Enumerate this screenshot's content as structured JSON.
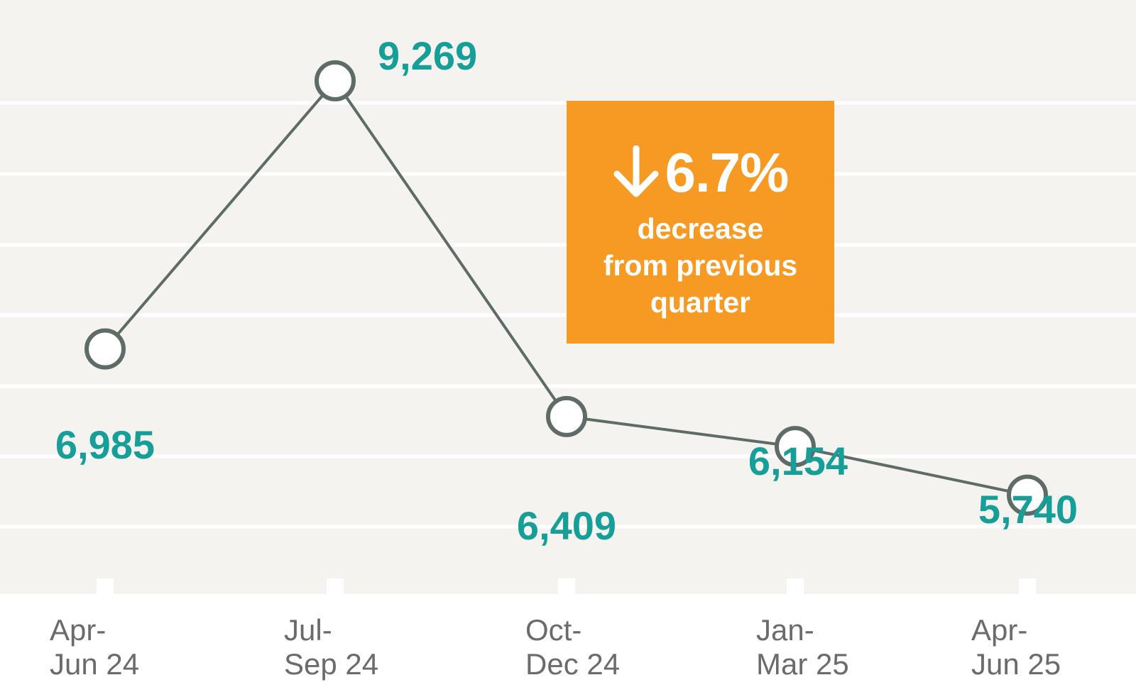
{
  "chart_data": {
    "type": "line",
    "categories": [
      [
        "Apr-",
        "Jun 24"
      ],
      [
        "Jul-",
        "Sep 24"
      ],
      [
        "Oct-",
        "Dec 24"
      ],
      [
        "Jan-",
        "Mar 25"
      ],
      [
        "Apr-",
        "Jun 25"
      ]
    ],
    "values": [
      6985,
      9269,
      6409,
      6154,
      5740
    ],
    "data_labels": [
      "6,985",
      "9,269",
      "6,409",
      "6,154",
      "5,740"
    ],
    "ylim": [
      4900,
      9900
    ],
    "grid": true,
    "title": "",
    "xlabel": "",
    "ylabel": "",
    "colors": {
      "plot_background": "#f5f3ef",
      "gridline": "#ffffff",
      "line": "#5f6b66",
      "data_label": "#169e98",
      "tick_label": "#6b6b6b"
    }
  },
  "callout": {
    "direction": "down",
    "value": "6.7%",
    "lines": [
      "decrease",
      "from previous",
      "quarter"
    ],
    "color": "#f79a23"
  }
}
